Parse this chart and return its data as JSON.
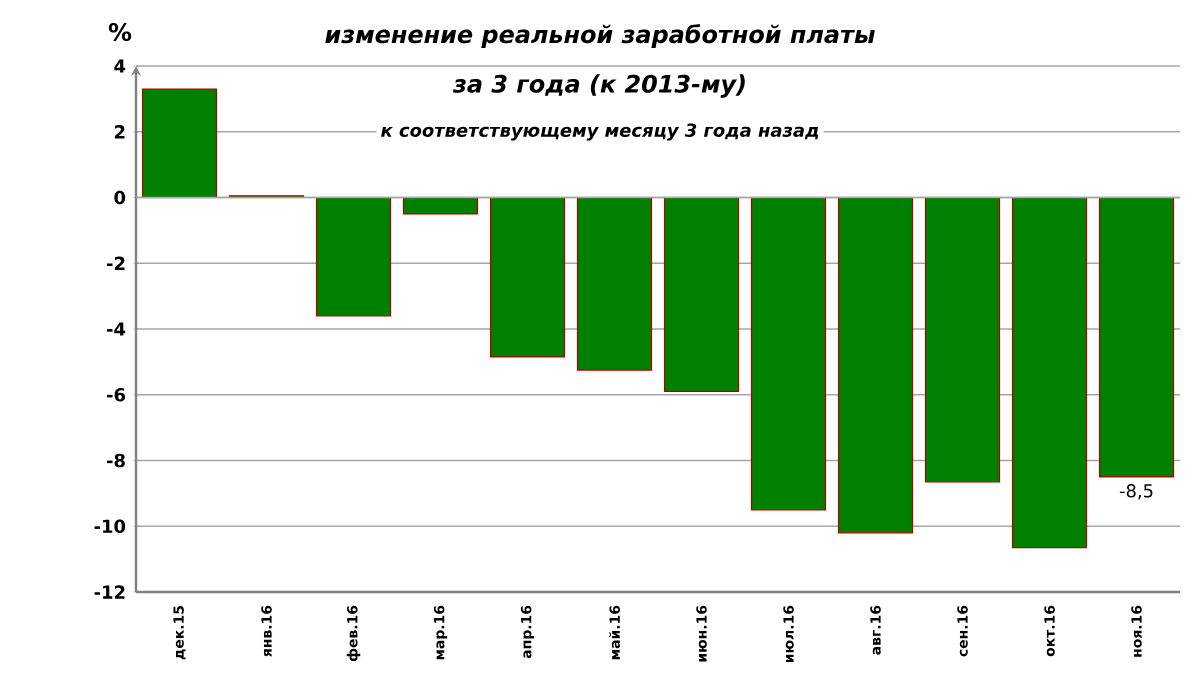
{
  "chart_data": {
    "type": "bar",
    "title": "изменение реальной заработной платы",
    "subtitle": "за 3 года (к 2013-му)",
    "annotations": [
      "к соответствующему месяцу 3 года назад"
    ],
    "ylabel": "%",
    "categories": [
      "дек.15",
      "янв.16",
      "фев.16",
      "мар.16",
      "апр.16",
      "май.16",
      "июн.16",
      "июл.16",
      "авг.16",
      "сен.16",
      "окт.16",
      "ноя.16"
    ],
    "values": [
      3.3,
      0.05,
      -3.6,
      -0.5,
      -4.85,
      -5.25,
      -5.9,
      -9.5,
      -10.2,
      -8.65,
      -10.65,
      -8.5
    ],
    "value_labels": [
      null,
      null,
      null,
      null,
      null,
      null,
      null,
      null,
      null,
      null,
      null,
      "-8,5"
    ],
    "color": "#008000",
    "ylim": [
      -12,
      4
    ],
    "yticks": [
      -12,
      -10,
      -8,
      -6,
      -4,
      -2,
      0,
      2,
      4
    ],
    "grid": "y"
  }
}
